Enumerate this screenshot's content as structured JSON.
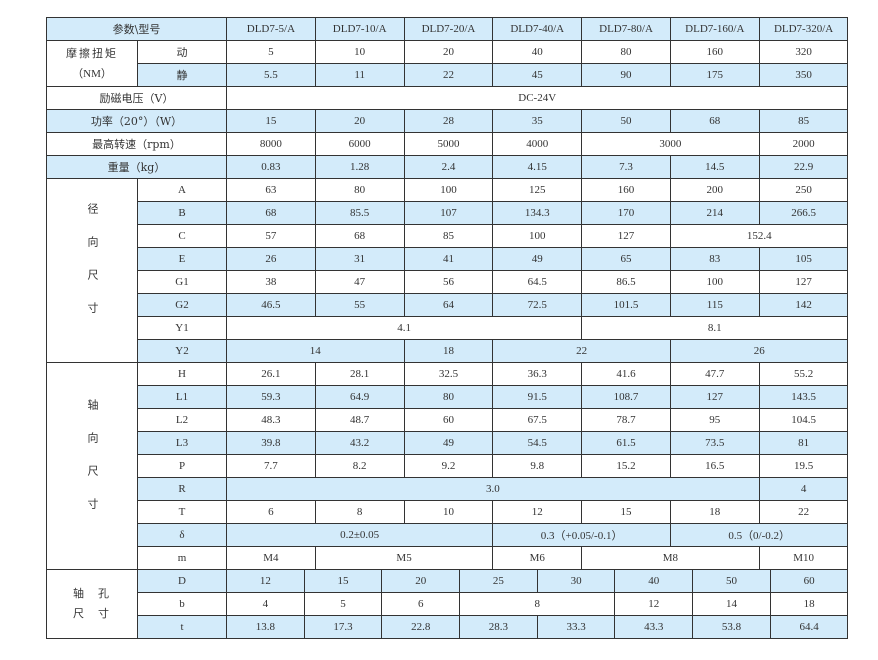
{
  "header": {
    "label": "参数\\型号",
    "models": [
      "DLD7-5/A",
      "DLD7-10/A",
      "DLD7-20/A",
      "DLD7-40/A",
      "DLD7-80/A",
      "DLD7-160/A",
      "DLD7-320/A"
    ]
  },
  "torque": {
    "label_line1": "摩擦扭矩",
    "label_line2": "（NM）",
    "rows": [
      {
        "label": "动",
        "cells": [
          "5",
          "10",
          "20",
          "40",
          "80",
          "160",
          "320"
        ]
      },
      {
        "label": "静",
        "cells": [
          "5.5",
          "11",
          "22",
          "45",
          "90",
          "175",
          "350"
        ]
      }
    ]
  },
  "general": [
    {
      "label": "励磁电压（V）",
      "cells": [
        {
          "v": "DC-24V",
          "span": 7
        }
      ]
    },
    {
      "label": "功率（20°）（W）",
      "cells": [
        "15",
        "20",
        "28",
        "35",
        "50",
        "68",
        "85"
      ]
    },
    {
      "label": "最高转速（rpm）",
      "cells": [
        "8000",
        "6000",
        "5000",
        "4000",
        {
          "v": "3000",
          "span": 2
        },
        "2000"
      ]
    },
    {
      "label": "重量（kg）",
      "cells": [
        "0.83",
        "1.28",
        "2.4",
        "4.15",
        "7.3",
        "14.5",
        "22.9"
      ]
    }
  ],
  "radial": {
    "label": "径向尺寸",
    "rows": [
      {
        "label": "A",
        "cells": [
          "63",
          "80",
          "100",
          "125",
          "160",
          "200",
          "250"
        ]
      },
      {
        "label": "B",
        "cells": [
          "68",
          "85.5",
          "107",
          "134.3",
          "170",
          "214",
          "266.5"
        ]
      },
      {
        "label": "C",
        "cells": [
          "57",
          "68",
          "85",
          "100",
          "127",
          {
            "v": "152.4",
            "span": 2
          }
        ]
      },
      {
        "label": "E",
        "cells": [
          "26",
          "31",
          "41",
          "49",
          "65",
          "83",
          "105"
        ]
      },
      {
        "label": "G1",
        "cells": [
          "38",
          "47",
          "56",
          "64.5",
          "86.5",
          "100",
          "127"
        ]
      },
      {
        "label": "G2",
        "cells": [
          "46.5",
          "55",
          "64",
          "72.5",
          "101.5",
          "115",
          "142"
        ]
      },
      {
        "label": "Y1",
        "cells": [
          {
            "v": "4.1",
            "span": 4
          },
          {
            "v": "8.1",
            "span": 3
          }
        ]
      },
      {
        "label": "Y2",
        "cells": [
          {
            "v": "14",
            "span": 2
          },
          "18",
          {
            "v": "22",
            "span": 2
          },
          {
            "v": "26",
            "span": 2
          }
        ]
      }
    ]
  },
  "axial": {
    "label": "轴向尺寸",
    "rows": [
      {
        "label": "H",
        "cells": [
          "26.1",
          "28.1",
          "32.5",
          "36.3",
          "41.6",
          "47.7",
          "55.2"
        ]
      },
      {
        "label": "L1",
        "cells": [
          "59.3",
          "64.9",
          "80",
          "91.5",
          "108.7",
          "127",
          "143.5"
        ]
      },
      {
        "label": "L2",
        "cells": [
          "48.3",
          "48.7",
          "60",
          "67.5",
          "78.7",
          "95",
          "104.5"
        ]
      },
      {
        "label": "L3",
        "cells": [
          "39.8",
          "43.2",
          "49",
          "54.5",
          "61.5",
          "73.5",
          "81"
        ]
      },
      {
        "label": "P",
        "cells": [
          "7.7",
          "8.2",
          "9.2",
          "9.8",
          "15.2",
          "16.5",
          "19.5"
        ]
      },
      {
        "label": "R",
        "cells": [
          {
            "v": "3.0",
            "span": 6
          },
          "4"
        ]
      },
      {
        "label": "T",
        "cells": [
          "6",
          "8",
          "10",
          "12",
          "15",
          "18",
          "22"
        ]
      },
      {
        "label": "δ",
        "cells": [
          {
            "v": "0.2±0.05",
            "span": 3
          },
          {
            "v": "0.3（+0.05/-0.1）",
            "span": 2
          },
          {
            "v": "0.5（0/-0.2）",
            "span": 2
          }
        ]
      },
      {
        "label": "m",
        "cells": [
          "M4",
          {
            "v": "M5",
            "span": 2
          },
          "M6",
          {
            "v": "M8",
            "span": 2
          },
          "M10"
        ]
      }
    ]
  },
  "bore": {
    "label_line1": "轴孔",
    "label_line2": "尺寸",
    "rows": [
      {
        "label": "D",
        "cells": [
          "12",
          "15",
          "20",
          "25",
          "30",
          "40",
          "50",
          "60"
        ]
      },
      {
        "label": "b",
        "cells": [
          "4",
          "5",
          "6",
          {
            "v": "8",
            "span": 2
          },
          "12",
          "14",
          "18"
        ]
      },
      {
        "label": "t",
        "cells": [
          "13.8",
          "17.3",
          "22.8",
          "28.3",
          "33.3",
          "43.3",
          "53.8",
          "64.4"
        ]
      }
    ]
  }
}
